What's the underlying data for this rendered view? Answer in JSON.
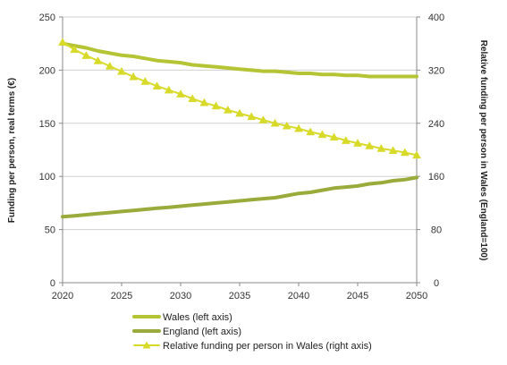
{
  "chart_data": {
    "type": "line",
    "x": [
      2020,
      2021,
      2022,
      2023,
      2024,
      2025,
      2026,
      2027,
      2028,
      2029,
      2030,
      2031,
      2032,
      2033,
      2034,
      2035,
      2036,
      2037,
      2038,
      2039,
      2040,
      2041,
      2042,
      2043,
      2044,
      2045,
      2046,
      2047,
      2048,
      2049,
      2050
    ],
    "xlim": [
      2020,
      2050
    ],
    "xticks": [
      2020,
      2025,
      2030,
      2035,
      2040,
      2045,
      2050
    ],
    "ylabel_left": "Funding per person, real terms (€)",
    "ylabel_right": "Relative funding per person in Wales (England=100)",
    "ylim_left": [
      0,
      250
    ],
    "yticks_left": [
      0,
      50,
      100,
      150,
      200,
      250
    ],
    "ylim_right": [
      0,
      400
    ],
    "yticks_right": [
      0,
      80,
      160,
      240,
      320,
      400
    ],
    "grid": "horizontal",
    "legend_position": "bottom",
    "series": [
      {
        "name": "Wales (left axis)",
        "axis": "left",
        "color": "#b5c434",
        "values": [
          225,
          223,
          221,
          218,
          216,
          214,
          213,
          211,
          209,
          208,
          207,
          205,
          204,
          203,
          202,
          201,
          200,
          199,
          199,
          198,
          197,
          197,
          196,
          196,
          195,
          195,
          194,
          194,
          194,
          194,
          194
        ]
      },
      {
        "name": "England (left axis)",
        "axis": "left",
        "color": "#9aab3c",
        "values": [
          62,
          63,
          64,
          65,
          66,
          67,
          68,
          69,
          70,
          71,
          72,
          73,
          74,
          75,
          76,
          77,
          78,
          79,
          80,
          82,
          84,
          85,
          87,
          89,
          90,
          91,
          93,
          94,
          96,
          97,
          99
        ]
      },
      {
        "name": "Relative funding per person in Wales (right axis)",
        "axis": "right",
        "color": "#d8da2a",
        "values": [
          362,
          351,
          342,
          334,
          326,
          318,
          310,
          303,
          296,
          290,
          284,
          277,
          271,
          266,
          260,
          255,
          250,
          245,
          240,
          236,
          232,
          227,
          223,
          219,
          214,
          210,
          206,
          202,
          199,
          196,
          192
        ]
      }
    ]
  }
}
